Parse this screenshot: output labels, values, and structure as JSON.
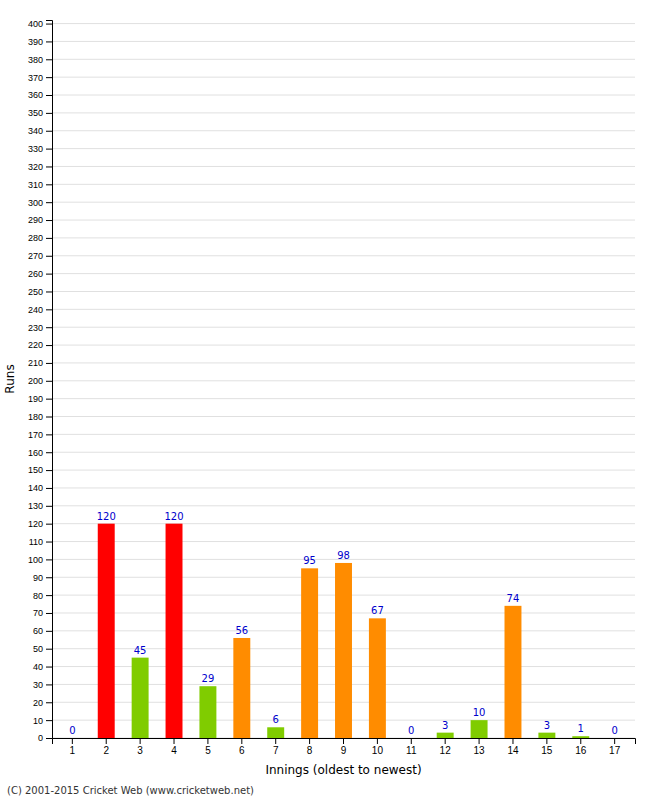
{
  "chart_data": {
    "type": "bar",
    "xlabel": "Innings (oldest to newest)",
    "ylabel": "Runs",
    "categories": [
      "1",
      "2",
      "3",
      "4",
      "5",
      "6",
      "7",
      "8",
      "9",
      "10",
      "11",
      "12",
      "13",
      "14",
      "15",
      "16",
      "17"
    ],
    "values": [
      0,
      120,
      45,
      120,
      29,
      56,
      6,
      95,
      98,
      67,
      0,
      3,
      10,
      74,
      3,
      1,
      0
    ],
    "colors": [
      "#FF8C00",
      "#FF0000",
      "#80CC00",
      "#FF0000",
      "#80CC00",
      "#FF8C00",
      "#80CC00",
      "#FF8C00",
      "#FF8C00",
      "#FF8C00",
      "#FF8C00",
      "#80CC00",
      "#80CC00",
      "#FF8C00",
      "#80CC00",
      "#80CC00",
      "#FF8C00"
    ],
    "ylim": [
      0,
      402
    ],
    "yticks": [
      0,
      10,
      20,
      30,
      40,
      50,
      60,
      70,
      80,
      90,
      100,
      110,
      120,
      130,
      140,
      150,
      160,
      170,
      180,
      190,
      200,
      210,
      220,
      230,
      240,
      250,
      260,
      270,
      280,
      290,
      300,
      310,
      320,
      330,
      340,
      350,
      360,
      370,
      380,
      390,
      400
    ],
    "grid": true,
    "data_labels": true,
    "annotation": "(C) 2001-2015 Cricket Web (www.cricketweb.net)"
  }
}
